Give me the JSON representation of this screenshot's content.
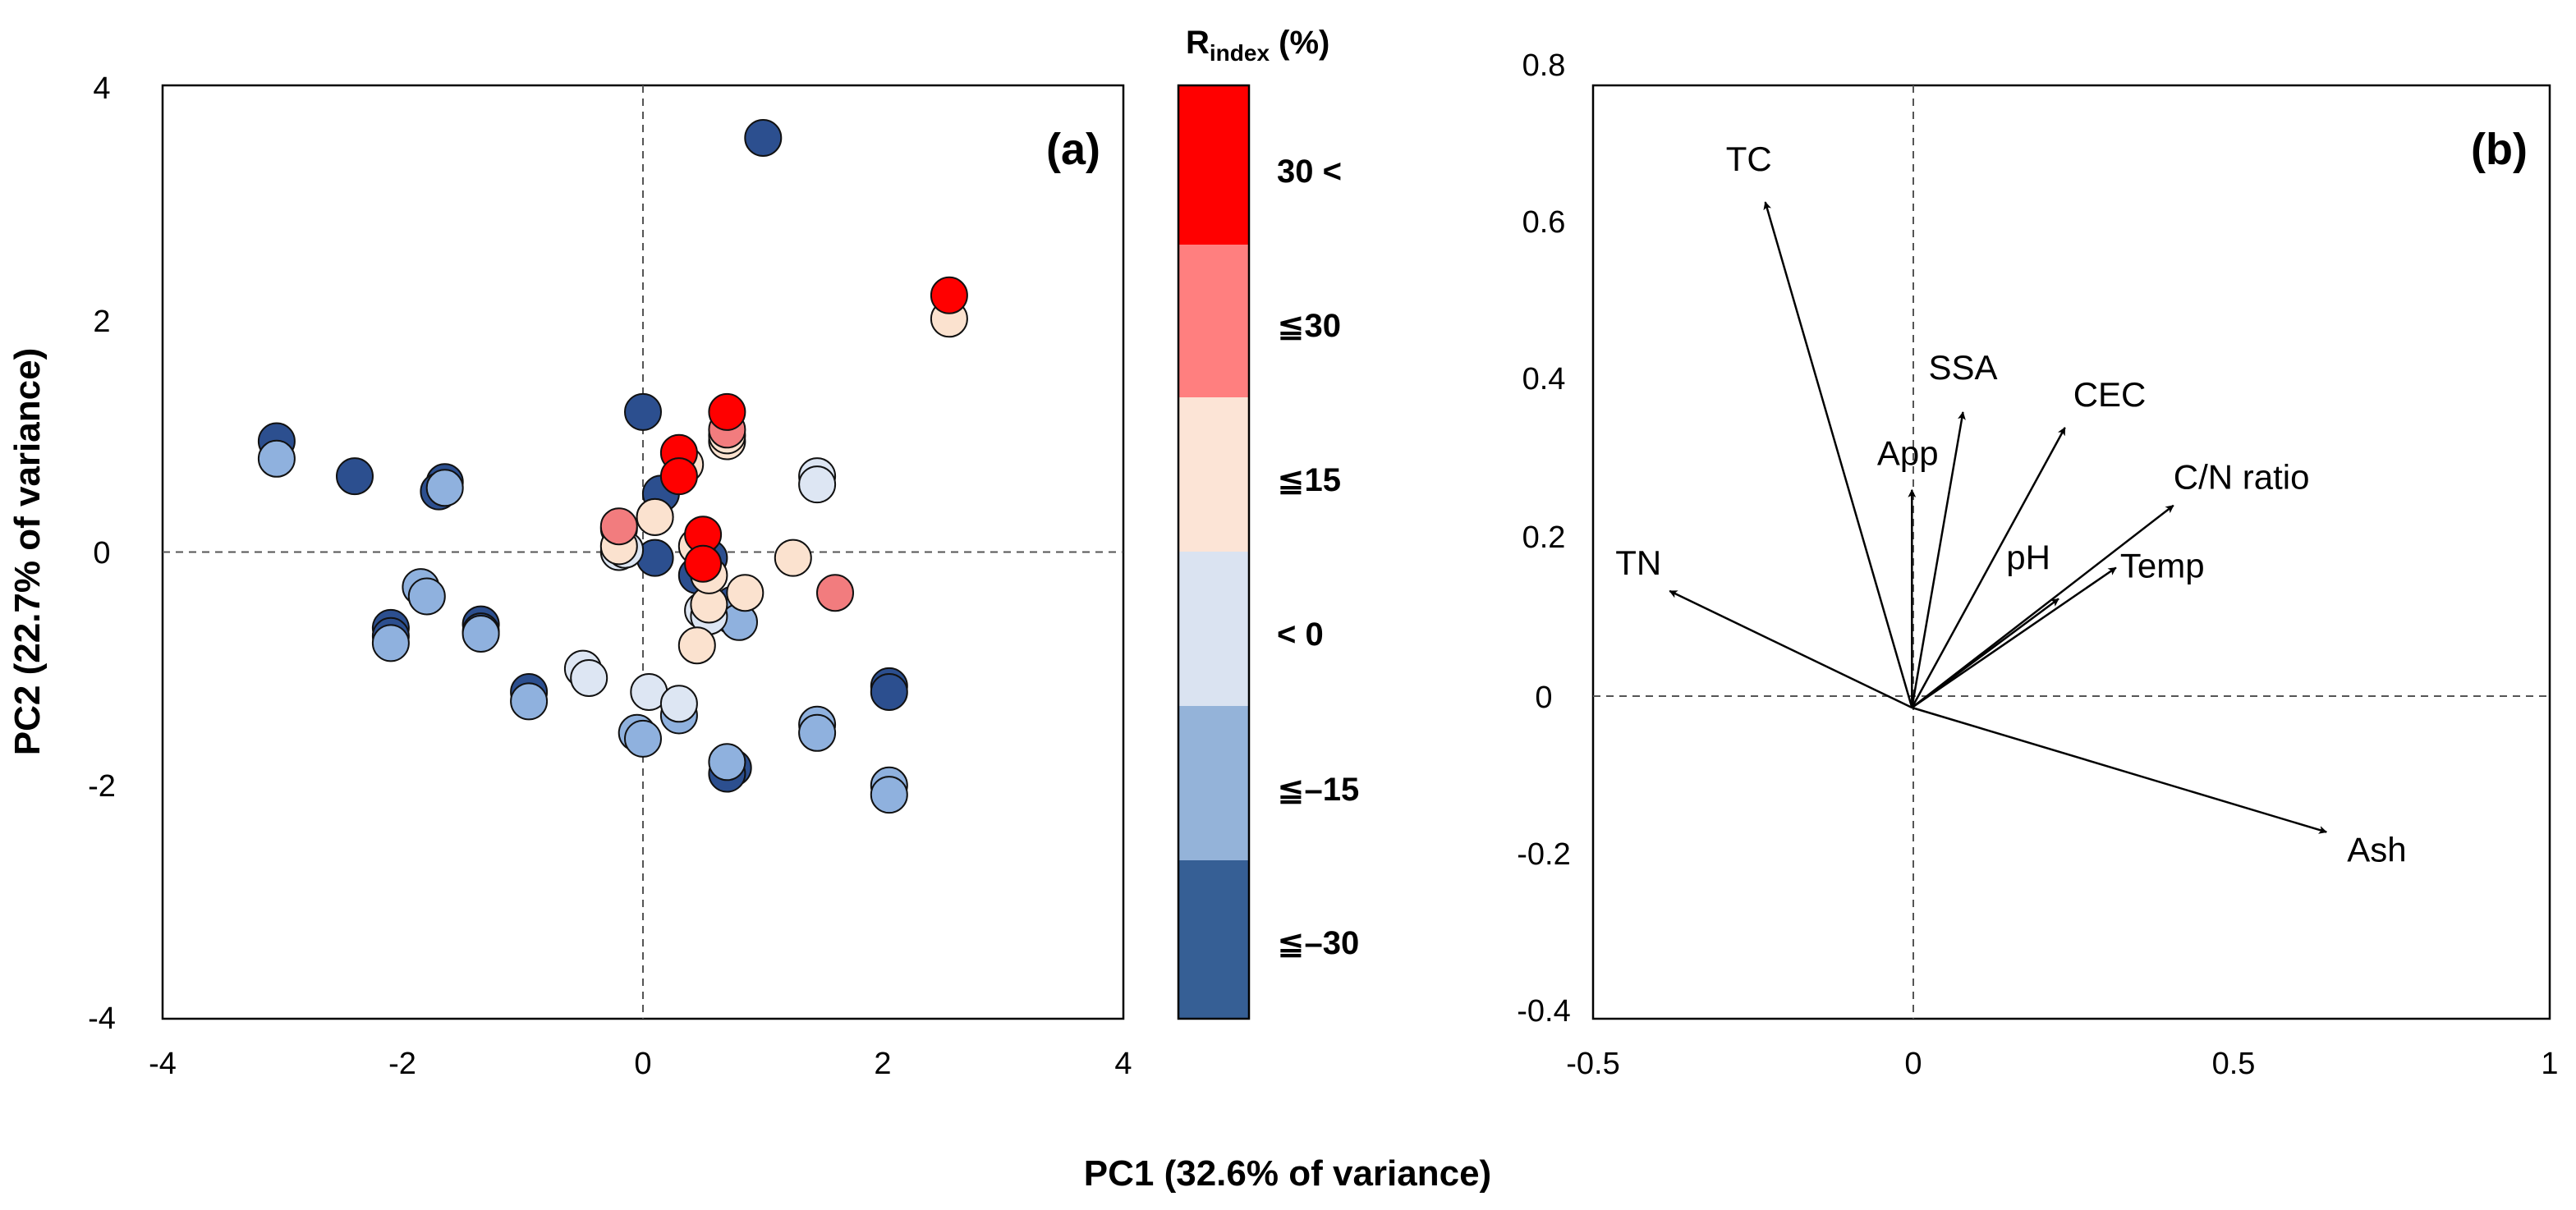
{
  "figure": {
    "shared_xlabel": "PC1 (32.6% of variance)"
  },
  "chart_data": [
    {
      "id": "a",
      "type": "scatter",
      "panel_label": "(a)",
      "xlabel": "PC1 (32.6% of variance)",
      "ylabel": "PC2 (22.7% of variance)",
      "xlim": [
        -4,
        4
      ],
      "ylim": [
        -4,
        4
      ],
      "xticks": [
        "-4",
        "-2",
        "0",
        "2",
        "4"
      ],
      "yticks": [
        "4",
        "2",
        "0",
        "-2",
        "-4"
      ],
      "reference_lines": [
        "x=0 dashed",
        "y=0 dashed"
      ],
      "colorbar": {
        "title_main": "R",
        "title_sub": "index",
        "title_unit": " (%)",
        "bins": [
          {
            "label": "30 <",
            "color": "#ff0000"
          },
          {
            "label": "≦30",
            "color": "#ff7f7f"
          },
          {
            "label": "≦15",
            "color": "#fce4d6"
          },
          {
            "label": "< 0",
            "color": "#dae3f1"
          },
          {
            "label": "≦–15",
            "color": "#94b3d9"
          },
          {
            "label": "≦–30",
            "color": "#365f95"
          }
        ]
      },
      "series": [
        {
          "name": "≦–30",
          "color": "#2c4f8f",
          "points": [
            [
              -3.05,
              0.95
            ],
            [
              -2.4,
              0.65
            ],
            [
              -1.65,
              0.6
            ],
            [
              -1.7,
              0.52
            ],
            [
              -2.1,
              -0.65
            ],
            [
              -2.1,
              -0.72
            ],
            [
              -1.35,
              -0.62
            ],
            [
              -1.35,
              -0.68
            ],
            [
              -0.95,
              -1.2
            ],
            [
              0,
              1.2
            ],
            [
              0.15,
              0.5
            ],
            [
              0.1,
              -0.05
            ],
            [
              -0.2,
              0.2
            ],
            [
              0.1,
              0.3
            ],
            [
              0.45,
              -0.2
            ],
            [
              0.55,
              -0.05
            ],
            [
              0.75,
              -0.45
            ],
            [
              0.75,
              -1.85
            ],
            [
              0.7,
              -1.9
            ],
            [
              1,
              3.55
            ],
            [
              2.05,
              -1.15
            ],
            [
              2.05,
              -1.2
            ]
          ]
        },
        {
          "name": "≦–15",
          "color": "#8fb1de",
          "points": [
            [
              -3.05,
              0.8
            ],
            [
              -1.65,
              0.55
            ],
            [
              -1.85,
              -0.3
            ],
            [
              -1.8,
              -0.38
            ],
            [
              -2.1,
              -0.78
            ],
            [
              -1.35,
              -0.7
            ],
            [
              -0.95,
              -1.28
            ],
            [
              -0.05,
              -1.55
            ],
            [
              0,
              -1.6
            ],
            [
              0.3,
              -1.4
            ],
            [
              0.7,
              -1.8
            ],
            [
              1.45,
              -1.48
            ],
            [
              1.45,
              -1.55
            ],
            [
              2.05,
              -2
            ],
            [
              2.05,
              -2.08
            ],
            [
              0.75,
              -0.55
            ],
            [
              0.8,
              -0.6
            ]
          ]
        },
        {
          "name": "< 0",
          "color": "#dde6f3",
          "points": [
            [
              -0.5,
              -1
            ],
            [
              -0.45,
              -1.08
            ],
            [
              0.05,
              -1.2
            ],
            [
              0.3,
              -1.3
            ],
            [
              1.45,
              0.65
            ],
            [
              1.45,
              0.58
            ],
            [
              0.5,
              -0.5
            ],
            [
              0.55,
              -0.55
            ],
            [
              -0.2,
              0.0
            ],
            [
              -0.15,
              0.02
            ]
          ]
        },
        {
          "name": "≦15",
          "color": "#fbe2cf",
          "points": [
            [
              -0.2,
              0.05
            ],
            [
              0.1,
              0.3
            ],
            [
              0.35,
              0.75
            ],
            [
              0.7,
              0.95
            ],
            [
              0.7,
              1.0
            ],
            [
              0.45,
              -0.8
            ],
            [
              0.55,
              -0.45
            ],
            [
              0.55,
              -0.2
            ],
            [
              0.85,
              -0.35
            ],
            [
              1.25,
              -0.05
            ],
            [
              2.55,
              2.0
            ],
            [
              0.45,
              0.05
            ]
          ]
        },
        {
          "name": "≦30",
          "color": "#f27c7e",
          "points": [
            [
              -0.2,
              0.22
            ],
            [
              0.7,
              1.05
            ],
            [
              1.6,
              -0.35
            ]
          ]
        },
        {
          "name": "30 <",
          "color": "#ff0000",
          "points": [
            [
              0.3,
              0.85
            ],
            [
              0.3,
              0.65
            ],
            [
              0.5,
              0.15
            ],
            [
              0.5,
              -0.1
            ],
            [
              0.7,
              1.2
            ],
            [
              2.55,
              2.2
            ]
          ]
        }
      ]
    },
    {
      "id": "b",
      "type": "biplot-loadings",
      "panel_label": "(b)",
      "xlim": [
        -0.5,
        1
      ],
      "ylim": [
        -0.4,
        0.8
      ],
      "xticks": [
        "-0.5",
        "0",
        "0.5",
        "1"
      ],
      "yticks": [
        "0.8",
        "0.6",
        "0.4",
        "0.2",
        "0",
        "-0.2",
        "-0.4"
      ],
      "reference_lines": [
        "x=0 dashed",
        "y=0 dashed"
      ],
      "vectors": [
        {
          "label": "TC",
          "x": -0.23,
          "y": 0.65
        },
        {
          "label": "SSA",
          "x": 0.08,
          "y": 0.38
        },
        {
          "label": "CEC",
          "x": 0.24,
          "y": 0.36
        },
        {
          "label": "App",
          "x": 0.0,
          "y": 0.28
        },
        {
          "label": "C/N ratio",
          "x": 0.41,
          "y": 0.26
        },
        {
          "label": "pH",
          "x": 0.23,
          "y": 0.14
        },
        {
          "label": "Temp",
          "x": 0.32,
          "y": 0.18
        },
        {
          "label": "TN",
          "x": -0.38,
          "y": 0.15
        },
        {
          "label": "Ash",
          "x": 0.65,
          "y": -0.16
        }
      ]
    }
  ]
}
